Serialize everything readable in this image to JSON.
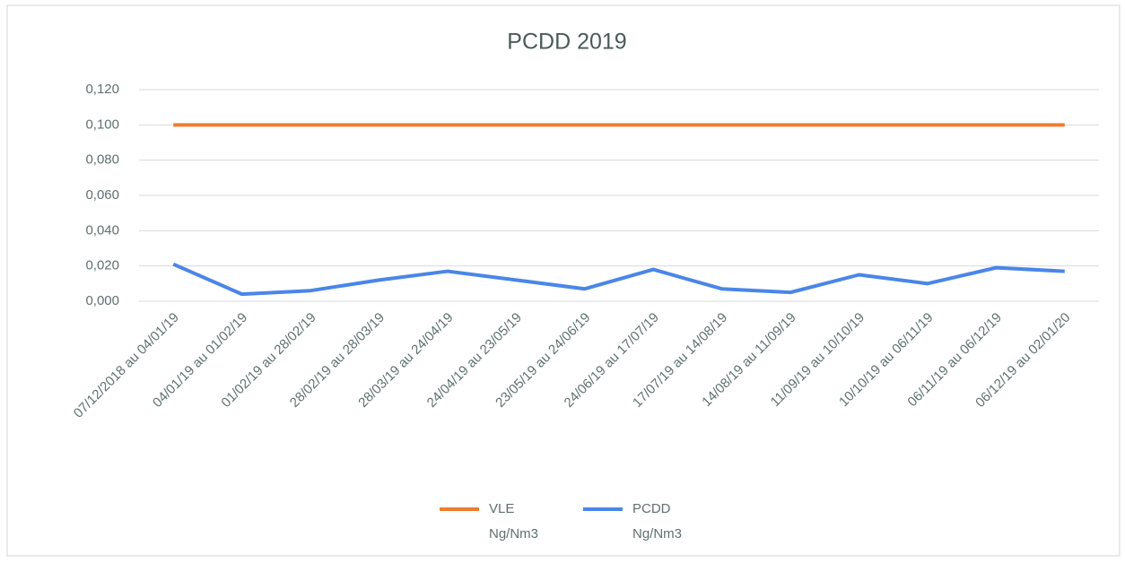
{
  "chart_data": {
    "type": "line",
    "title": "PCDD 2019",
    "categories": [
      "07/12/2018 au 04/01/19",
      "04/01/19 au 01/02/19",
      "01/02/19 au 28/02/19",
      "28/02/19 au 28/03/19",
      "28/03/19 au 24/04/19",
      "24/04/19 au 23/05/19",
      "23/05/19 au 24/06/19",
      "24/06/19 au 17/07/19",
      "17/07/19 au 14/08/19",
      "14/08/19 au 11/09/19",
      "11/09/19 au 10/10/19",
      "10/10/19 au 06/11/19",
      "06/11/19 au 06/12/19",
      "06/12/19 au 02/01/20"
    ],
    "series": [
      {
        "name": "VLE Ng/Nm3",
        "color": "#ed7d31",
        "values": [
          0.1,
          0.1,
          0.1,
          0.1,
          0.1,
          0.1,
          0.1,
          0.1,
          0.1,
          0.1,
          0.1,
          0.1,
          0.1,
          0.1
        ]
      },
      {
        "name": "PCDD Ng/Nm3",
        "color": "#4a86e8",
        "values": [
          0.021,
          0.004,
          0.006,
          0.012,
          0.017,
          0.012,
          0.007,
          0.018,
          0.007,
          0.005,
          0.015,
          0.01,
          0.019,
          0.017
        ]
      }
    ],
    "ylim": [
      0,
      0.12
    ],
    "yticks": [
      {
        "value": 0,
        "label": "0,000"
      },
      {
        "value": 0.02,
        "label": "0,020"
      },
      {
        "value": 0.04,
        "label": "0,040"
      },
      {
        "value": 0.06,
        "label": "0,060"
      },
      {
        "value": 0.08,
        "label": "0,080"
      },
      {
        "value": 0.1,
        "label": "0,100"
      },
      {
        "value": 0.12,
        "label": "0,120"
      }
    ],
    "grid": true,
    "legend": "bottom"
  }
}
